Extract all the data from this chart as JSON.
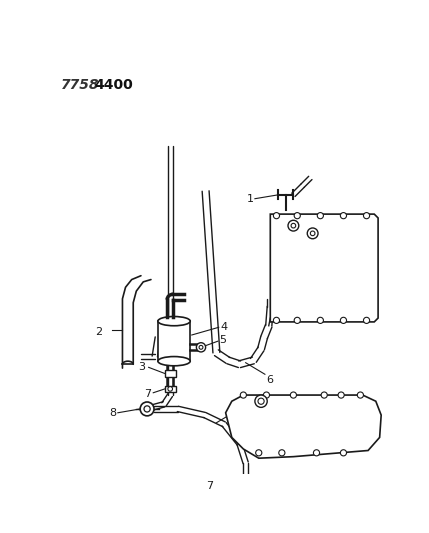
{
  "title_part1": "7758",
  "title_part2": "4400",
  "bg_color": "#ffffff",
  "line_color": "#1a1a1a",
  "fig_width": 4.29,
  "fig_height": 5.33,
  "dpi": 100
}
